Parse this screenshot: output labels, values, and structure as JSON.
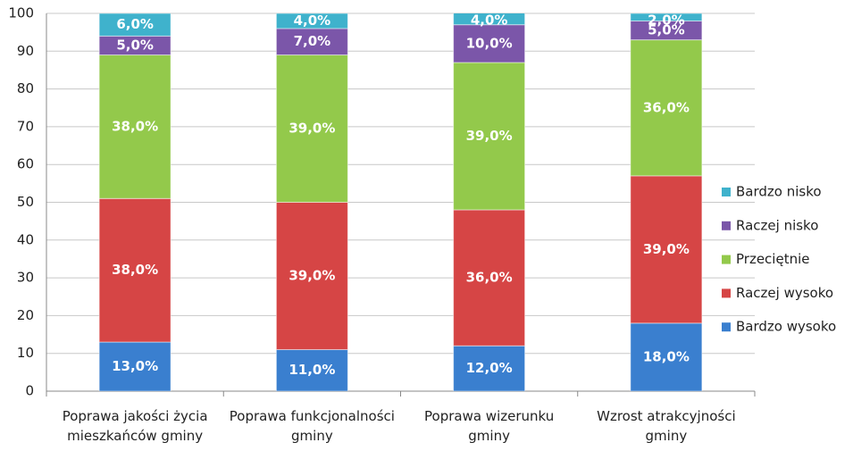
{
  "chart_data": {
    "type": "stacked_bar",
    "categories": [
      "Poprawa jakości życia mieszkańców gminy",
      "Poprawa funkcjonalności gminy",
      "Poprawa wizerunku gminy",
      "Wzrost atrakcyjności gminy"
    ],
    "series": [
      {
        "name": "Bardzo wysoko",
        "color": "#3a7fcf",
        "values": [
          13,
          11,
          12,
          18
        ],
        "value_labels": [
          "13,0%",
          "11,0%",
          "12,0%",
          "18,0%"
        ]
      },
      {
        "name": "Raczej wysoko",
        "color": "#d64545",
        "values": [
          38,
          39,
          36,
          39
        ],
        "value_labels": [
          "38,0%",
          "39,0%",
          "36,0%",
          "39,0%"
        ]
      },
      {
        "name": "Przeciętnie",
        "color": "#93c94b",
        "values": [
          38,
          39,
          39,
          36
        ],
        "value_labels": [
          "38,0%",
          "39,0%",
          "39,0%",
          "36,0%"
        ]
      },
      {
        "name": "Raczej nisko",
        "color": "#7b56a9",
        "values": [
          5,
          7,
          10,
          5
        ],
        "value_labels": [
          "5,0%",
          "7,0%",
          "10,0%",
          "5,0%"
        ]
      },
      {
        "name": "Bardzo nisko",
        "color": "#3fb2cc",
        "values": [
          6,
          4,
          4,
          2
        ],
        "value_labels": [
          "6,0%",
          "4,0%",
          "4,0%",
          "2,0%"
        ]
      }
    ],
    "ylim": [
      0,
      100
    ],
    "yticks": [
      0,
      10,
      20,
      30,
      40,
      50,
      60,
      70,
      80,
      90,
      100
    ],
    "grid": true,
    "legend": "right"
  }
}
